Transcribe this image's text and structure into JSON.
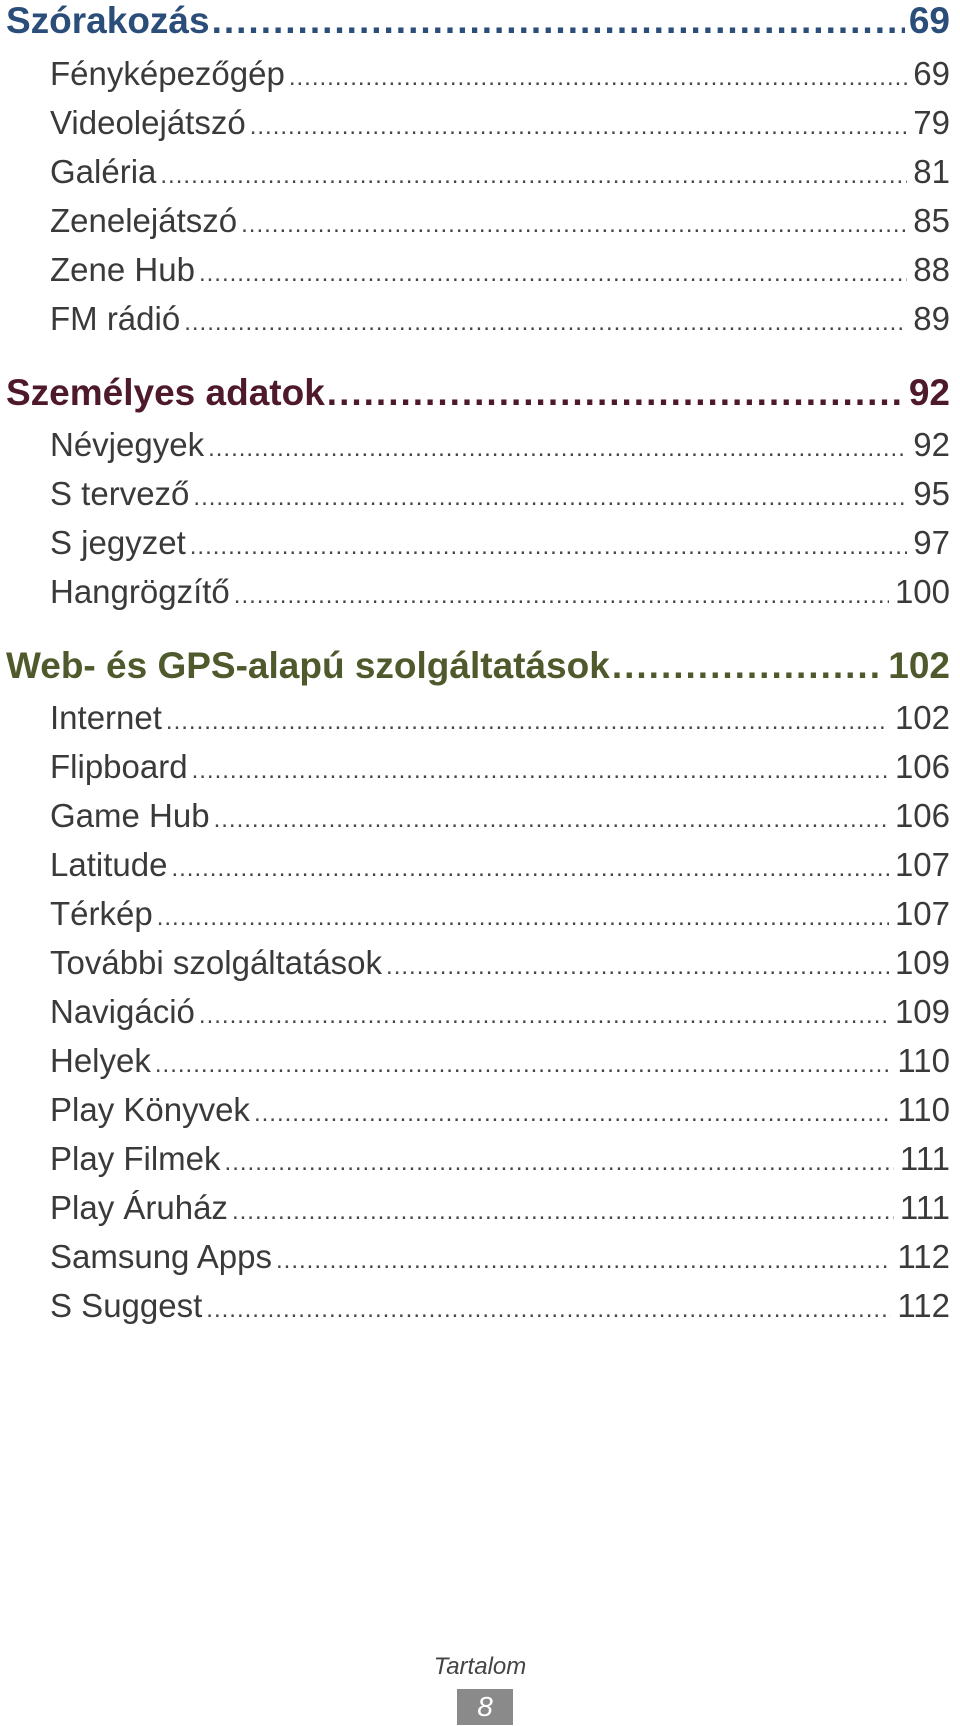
{
  "sections": [
    {
      "title": "Szórakozás",
      "page": "69",
      "color": "#2b4d79",
      "entries": [
        {
          "label": "Fényképezőgép",
          "page": "69"
        },
        {
          "label": "Videolejátszó",
          "page": "79"
        },
        {
          "label": "Galéria",
          "page": "81"
        },
        {
          "label": "Zenelejátszó",
          "page": "85"
        },
        {
          "label": "Zene Hub",
          "page": "88"
        },
        {
          "label": "FM rádió",
          "page": "89"
        }
      ]
    },
    {
      "title": "Személyes adatok",
      "page": "92",
      "color": "#4e1a2b",
      "entries": [
        {
          "label": "Névjegyek",
          "page": "92"
        },
        {
          "label": "S tervező",
          "page": "95"
        },
        {
          "label": "S jegyzet",
          "page": "97"
        },
        {
          "label": "Hangrögzítő",
          "page": "100"
        }
      ]
    },
    {
      "title": "Web- és GPS-alapú szolgáltatások",
      "page": "102",
      "color": "#4f5a2c",
      "entries": [
        {
          "label": "Internet",
          "page": "102"
        },
        {
          "label": "Flipboard",
          "page": "106"
        },
        {
          "label": "Game Hub",
          "page": "106"
        },
        {
          "label": "Latitude",
          "page": "107"
        },
        {
          "label": "Térkép",
          "page": "107"
        },
        {
          "label": "További szolgáltatások",
          "page": "109"
        },
        {
          "label": "Navigáció",
          "page": "109"
        },
        {
          "label": "Helyek",
          "page": "110"
        },
        {
          "label": "Play Könyvek",
          "page": "110"
        },
        {
          "label": "Play Filmek",
          "page": "111"
        },
        {
          "label": "Play Áruház",
          "page": "111"
        },
        {
          "label": "Samsung Apps",
          "page": "112"
        },
        {
          "label": "S Suggest",
          "page": "112"
        }
      ]
    }
  ],
  "footer": {
    "label": "Tartalom",
    "page_number": "8"
  }
}
